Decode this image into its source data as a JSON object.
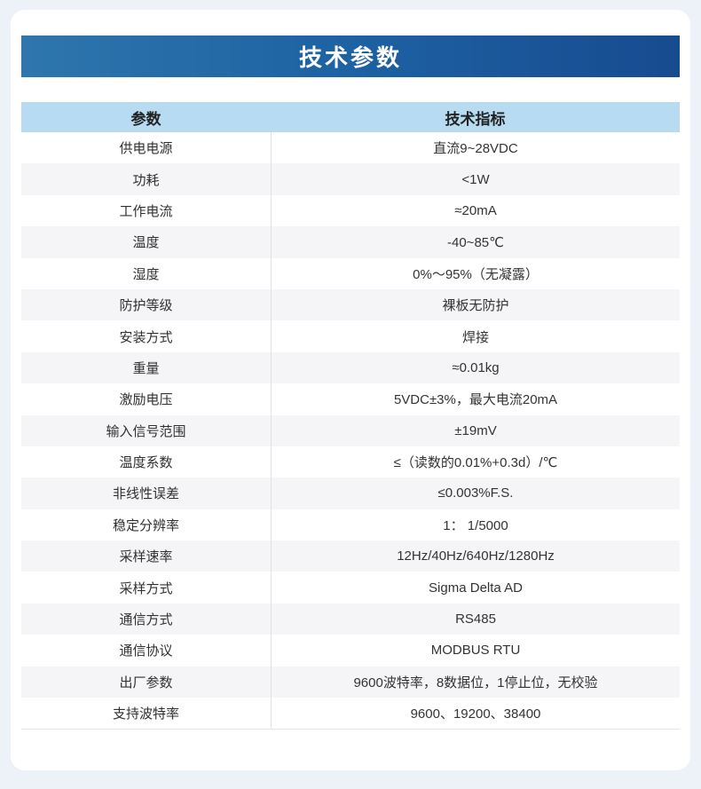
{
  "section": {
    "title": "技术参数"
  },
  "table": {
    "headers": [
      "参数",
      "技术指标"
    ],
    "rows": [
      {
        "param": "供电电源",
        "value": "直流9~28VDC"
      },
      {
        "param": "功耗",
        "value": "<1W"
      },
      {
        "param": "工作电流",
        "value": "≈20mA"
      },
      {
        "param": "温度",
        "value": "-40~85℃"
      },
      {
        "param": "湿度",
        "value": "0%～95%（无凝露）"
      },
      {
        "param": "防护等级",
        "value": "裸板无防护"
      },
      {
        "param": "安装方式",
        "value": "焊接"
      },
      {
        "param": "重量",
        "value": "≈0.01kg"
      },
      {
        "param": "激励电压",
        "value": "5VDC±3%，最大电流20mA"
      },
      {
        "param": "输入信号范围",
        "value": "±19mV"
      },
      {
        "param": "温度系数",
        "value": "≤（读数的0.01%+0.3d）/℃"
      },
      {
        "param": "非线性误差",
        "value": "≤0.003%F.S."
      },
      {
        "param": "稳定分辨率",
        "value": "1： 1/5000"
      },
      {
        "param": "采样速率",
        "value": "12Hz/40Hz/640Hz/1280Hz"
      },
      {
        "param": "采样方式",
        "value": "Sigma Delta AD"
      },
      {
        "param": "通信方式",
        "value": "RS485"
      },
      {
        "param": "通信协议",
        "value": "MODBUS RTU"
      },
      {
        "param": "出厂参数",
        "value": "9600波特率，8数据位，1停止位，无校验"
      },
      {
        "param": "支持波特率",
        "value": "9600、19200、38400"
      }
    ]
  },
  "colors": {
    "page_background": "#edf1f8",
    "card_background": "#ffffff",
    "banner_gradient_start": "#2e76ad",
    "banner_gradient_end": "#174b90",
    "table_header_background": "#b7dbf0",
    "stripe_row_background": "#f5f5f7",
    "body_text": "#333333"
  }
}
